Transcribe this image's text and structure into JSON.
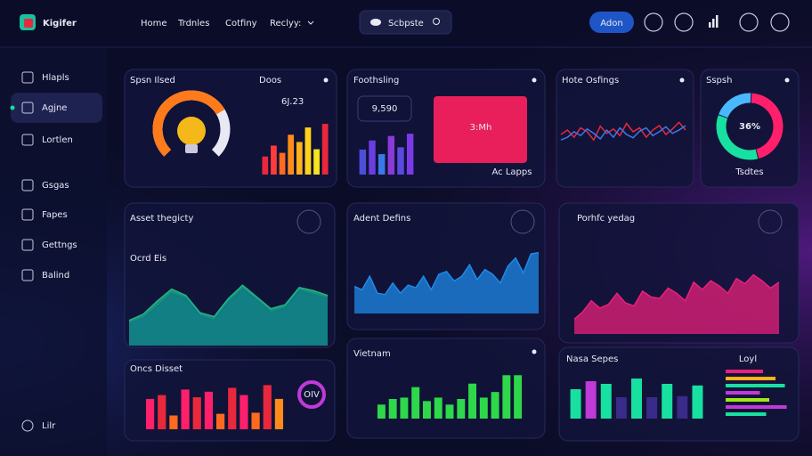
{
  "brand": "Kigifer",
  "nav": [
    "Home",
    "Trdnles",
    "Cotfiny",
    "Reclyy:"
  ],
  "search": "Scbpste",
  "button": "Adon",
  "sidebar": [
    "Hlapls",
    "Agjne",
    "Lortlen",
    "Gsgas",
    "Fapes",
    "Gettngs",
    "Balind"
  ],
  "sidebar_footer": "Lilr",
  "widgets": [
    {
      "type": "gauge",
      "title": "Spsn Ilsed",
      "value": 72,
      "lim": [
        0,
        100
      ],
      "color": "#ff7a1a"
    },
    {
      "type": "bar",
      "title": "Doos",
      "stat": "6J.23",
      "ylim": [
        0,
        30
      ],
      "values": [
        10,
        16,
        12,
        22,
        18,
        26,
        14,
        28
      ],
      "colors": [
        "#e8283c",
        "#ff3b3b",
        "#ff6a1f",
        "#ff8c1a",
        "#ffb21a",
        "#ffd21a",
        "#f5e51a",
        "#e8283c"
      ]
    },
    {
      "type": "bar",
      "title": "Foothsling",
      "stat": "9,590",
      "panel_label": "3:Mh",
      "footer": "Ac Lapps",
      "ylim": [
        0,
        40
      ],
      "values": [
        22,
        30,
        18,
        34,
        24,
        36
      ],
      "colors": [
        "#4b4fd8",
        "#6a3ee0",
        "#3a7ae8",
        "#8a3ad8",
        "#5a4ae0",
        "#7a3ae8"
      ]
    },
    {
      "type": "line",
      "title": "Hote Osfings",
      "ylim": [
        0,
        100
      ],
      "series": [
        {
          "color": "#e8283c",
          "values": [
            50,
            58,
            45,
            62,
            55,
            40,
            65,
            52,
            60,
            48,
            70,
            55,
            62,
            45,
            58,
            66,
            50,
            60,
            72,
            58
          ]
        },
        {
          "color": "#3a7ae8",
          "values": [
            40,
            45,
            55,
            48,
            60,
            52,
            42,
            58,
            45,
            62,
            50,
            44,
            56,
            62,
            48,
            55,
            64,
            52,
            58,
            66
          ]
        }
      ]
    },
    {
      "type": "donut",
      "title": "Sspsh",
      "center": "36%",
      "footer": "Tsdtes",
      "values": [
        45,
        35,
        20
      ],
      "colors": [
        "#ff1f6a",
        "#18e0a0",
        "#4ab8ff"
      ]
    },
    {
      "type": "area",
      "title": "Asset thegicty",
      "subtitle": "Ocrd Eis",
      "ylim": [
        0,
        100
      ],
      "series": [
        {
          "color": "#1fb88a",
          "values": [
            32,
            40,
            57,
            72,
            64,
            42,
            37,
            60,
            77,
            62,
            47,
            52,
            74,
            70,
            64
          ]
        },
        {
          "color": "#0f7a8a",
          "values": [
            28,
            35,
            50,
            66,
            60,
            38,
            32,
            55,
            72,
            58,
            42,
            48,
            70,
            65,
            60
          ]
        }
      ]
    },
    {
      "type": "area",
      "title": "Adent Defins",
      "ylim": [
        0,
        100
      ],
      "series": [
        {
          "color": "#1e8ae8",
          "values": [
            40,
            35,
            55,
            30,
            28,
            45,
            30,
            42,
            38,
            55,
            35,
            58,
            62,
            48,
            55,
            72,
            50,
            65,
            58,
            45,
            70,
            82,
            60,
            88,
            90
          ]
        }
      ]
    },
    {
      "type": "area",
      "title": "Porhfc yedag",
      "ylim": [
        0,
        100
      ],
      "series": [
        {
          "color": "#e8207a",
          "values": [
            20,
            30,
            45,
            35,
            40,
            55,
            42,
            38,
            58,
            50,
            48,
            62,
            55,
            45,
            70,
            60,
            72,
            65,
            55,
            75,
            68,
            80,
            72,
            62,
            70
          ]
        }
      ]
    },
    {
      "type": "bar",
      "title": "Oncs Disset",
      "donut_label": "OIV",
      "ylim": [
        0,
        100
      ],
      "values": [
        55,
        62,
        25,
        72,
        58,
        68,
        28,
        75,
        62,
        30,
        80,
        55
      ],
      "colors": [
        "#ff1f6a",
        "#e8283c",
        "#ff6a1f",
        "#ff1f6a",
        "#e8283c",
        "#ff1f6a",
        "#ff6a1f",
        "#e8283c",
        "#ff1f6a",
        "#ff6a1f",
        "#e8283c",
        "#ff8c1a"
      ]
    },
    {
      "type": "bar",
      "title": "Vietnam",
      "ylim": [
        0,
        70
      ],
      "values": [
        20,
        28,
        30,
        45,
        25,
        30,
        20,
        28,
        50,
        30,
        38,
        62,
        62
      ],
      "colors": [
        "#2ed84a",
        "#2ed84a",
        "#2ed84a",
        "#2ed84a",
        "#2ed84a",
        "#2ed84a",
        "#2ed84a",
        "#2ed84a",
        "#2ed84a",
        "#2ed84a",
        "#2ed84a",
        "#2ed84a",
        "#2ed84a"
      ]
    },
    {
      "type": "bar",
      "title": "Nasa Sepes",
      "ylim": [
        0,
        100
      ],
      "values": [
        55,
        70,
        65,
        40,
        75,
        40,
        65,
        42,
        62
      ],
      "colors": [
        "#18e0a0",
        "#c03ad8",
        "#18e0a0",
        "#3a2a8a",
        "#18e0a0",
        "#3a2a8a",
        "#18e0a0",
        "#3a2a8a",
        "#18e0a0"
      ],
      "hbar_title": "Loyl",
      "hbar_values": [
        60,
        80,
        95,
        55,
        70,
        98,
        65
      ],
      "hbar_colors": [
        "#e8207a",
        "#ffb21a",
        "#18e0a0",
        "#c03ad8",
        "#a0e81a",
        "#c03ad8",
        "#18e0a0"
      ]
    }
  ]
}
